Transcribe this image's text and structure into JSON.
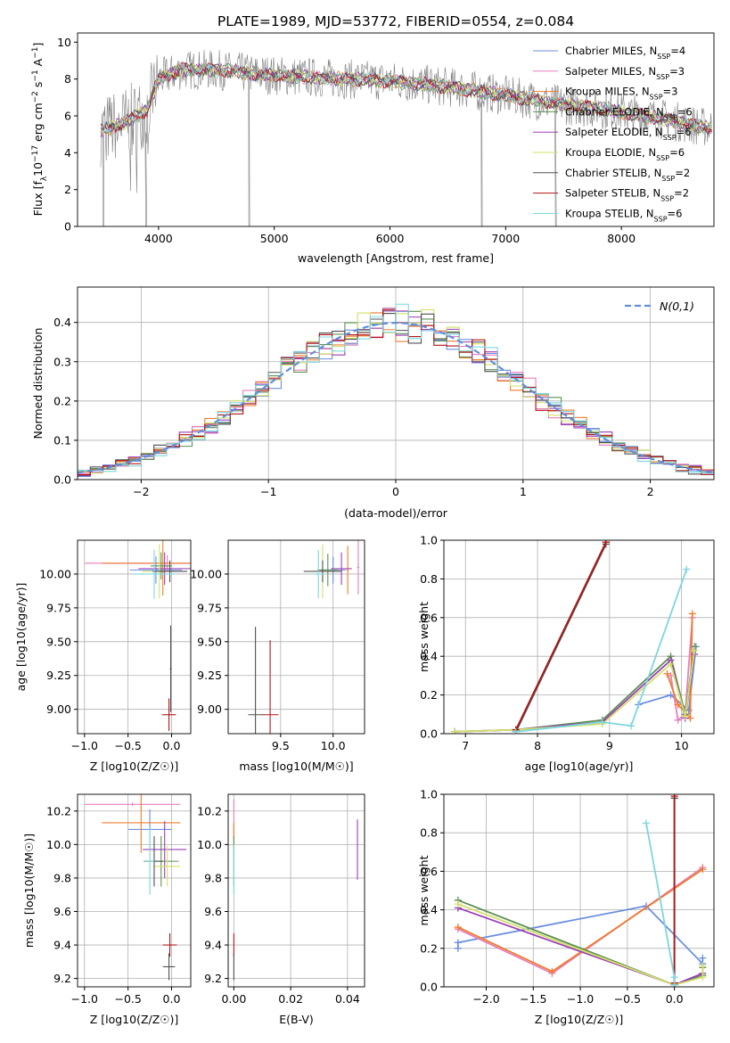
{
  "figure": {
    "title": "PLATE=1989, MJD=53772, FIBERID=0554, z=0.084"
  },
  "colors": {
    "Chabrier MILES": "#6a8fe0",
    "Salpeter MILES": "#e77fbd",
    "Kroupa MILES": "#ee7d2d",
    "Chabrier ELODIE": "#5e8f54",
    "Salpeter ELODIE": "#9a3fb8",
    "Kroupa ELODIE": "#d4e06a",
    "Chabrier STELIB": "#505050",
    "Salpeter STELIB": "#b01515",
    "Kroupa STELIB": "#7dd6dc",
    "gaussian": "#5f8fde"
  },
  "chart_data": [
    {
      "type": "line",
      "xlabel": "wavelength [Angstrom, rest frame]",
      "ylabel": "Flux [f_λ10^-17 erg cm^-2 s^-1 A^-1]",
      "xlim": [
        3300,
        8800
      ],
      "ylim": [
        0,
        10.5
      ],
      "xticks": [
        4000,
        5000,
        6000,
        7000,
        8000
      ],
      "yticks": [
        0,
        2,
        4,
        6,
        8,
        10
      ],
      "legend_position": "top-right",
      "continuum": {
        "x": [
          3500,
          3700,
          3900,
          4000,
          4200,
          4500,
          4800,
          5000,
          5300,
          5600,
          6000,
          6300,
          6600,
          6900,
          7200,
          7500,
          7800,
          8100,
          8400,
          8700
        ],
        "y": [
          5.2,
          5.6,
          6.3,
          8.0,
          8.5,
          8.5,
          8.3,
          8.2,
          8.1,
          8.0,
          7.9,
          7.7,
          7.5,
          7.2,
          6.9,
          6.6,
          6.4,
          6.1,
          5.8,
          5.4
        ]
      },
      "observed_dips": [
        3520,
        3890,
        4780,
        6790,
        7430
      ],
      "series": [
        {
          "name": "Chabrier MILES, N_SSP=4",
          "name_main": "Chabrier MILES, N",
          "name_sub": "SSP",
          "name_tail": "=4"
        },
        {
          "name": "Salpeter MILES, N_SSP=3",
          "name_main": "Salpeter MILES, N",
          "name_sub": "SSP",
          "name_tail": "=3"
        },
        {
          "name": "Kroupa MILES, N_SSP=3",
          "name_main": "Kroupa MILES, N",
          "name_sub": "SSP",
          "name_tail": "=3"
        },
        {
          "name": "Chabrier ELODIE, N_SSP=6",
          "name_main": "Chabrier ELODIE, N",
          "name_sub": "SSP",
          "name_tail": "=6"
        },
        {
          "name": "Salpeter ELODIE, N_SSP=6",
          "name_main": "Salpeter ELODIE, N",
          "name_sub": "SSP",
          "name_tail": "=6"
        },
        {
          "name": "Kroupa ELODIE, N_SSP=6",
          "name_main": "Kroupa ELODIE, N",
          "name_sub": "SSP",
          "name_tail": "=6"
        },
        {
          "name": "Chabrier STELIB, N_SSP=2",
          "name_main": "Chabrier STELIB, N",
          "name_sub": "SSP",
          "name_tail": "=2"
        },
        {
          "name": "Salpeter STELIB, N_SSP=2",
          "name_main": "Salpeter STELIB, N",
          "name_sub": "SSP",
          "name_tail": "=2"
        },
        {
          "name": "Kroupa STELIB, N_SSP=6",
          "name_main": "Kroupa STELIB, N",
          "name_sub": "SSP",
          "name_tail": "=6"
        }
      ]
    },
    {
      "type": "line",
      "xlabel": "(data-model)/error",
      "ylabel": "Normed distribution",
      "xlim": [
        -2.5,
        2.5
      ],
      "ylim": [
        0,
        0.49
      ],
      "xticks": [
        -2,
        -1,
        0,
        1,
        2
      ],
      "yticks": [
        0.0,
        0.1,
        0.2,
        0.3,
        0.4
      ],
      "grid": true,
      "legend_position": "top-right",
      "legend": "N(0,1)",
      "bin_width": 0.1
    },
    {
      "type": "scatter",
      "xlabel": "Z [log10(Z/Z☉)]",
      "ylabel": "age [log10(age/yr)]",
      "xlim": [
        -1.08,
        0.22
      ],
      "ylim": [
        8.82,
        10.25
      ],
      "xticks": [
        -1.0,
        -0.5,
        0.0
      ],
      "yticks": [
        9.0,
        9.25,
        9.5,
        9.75,
        10.0
      ],
      "grid": true,
      "points": [
        {
          "name": "Chabrier MILES",
          "x": -0.18,
          "xerr": 0.3,
          "y": 10.03,
          "yerr": 0.1
        },
        {
          "name": "Salpeter MILES",
          "x": -0.05,
          "xerr": 0.95,
          "y": 10.08,
          "yerr": 0.06
        },
        {
          "name": "Kroupa MILES",
          "x": -0.1,
          "xerr": 0.7,
          "y": 10.08,
          "yerr": 0.24
        },
        {
          "name": "Chabrier ELODIE",
          "x": -0.12,
          "xerr": 0.12,
          "y": 10.06,
          "yerr": 0.1
        },
        {
          "name": "Salpeter ELODIE",
          "x": -0.08,
          "xerr": 0.3,
          "y": 10.04,
          "yerr": 0.12
        },
        {
          "name": "Kroupa ELODIE",
          "x": -0.14,
          "xerr": 0.2,
          "y": 10.02,
          "yerr": 0.2
        },
        {
          "name": "Chabrier STELIB",
          "x": -0.02,
          "xerr": 0.2,
          "y": 10.02,
          "yerr": 0.08
        },
        {
          "name": "Salpeter STELIB",
          "x": -0.03,
          "xerr": 0.08,
          "y": 8.96,
          "yerr": 0.12
        },
        {
          "name": "Kroupa STELIB",
          "x": -0.2,
          "xerr": 0.25,
          "y": 10.0,
          "yerr": 0.18
        },
        {
          "name": "Chabrier STELIB",
          "x": -0.01,
          "xerr": 0.01,
          "y": 9.3,
          "yerr": 0.32
        }
      ]
    },
    {
      "type": "scatter",
      "xlabel": "mass [log10(M/M☉)]",
      "ylabel": "",
      "xlim": [
        9.0,
        10.3
      ],
      "ylim": [
        8.82,
        10.25
      ],
      "xticks": [
        9.5,
        10.0
      ],
      "yticks": [
        9.0,
        9.25,
        9.5,
        9.75,
        10.0
      ],
      "grid": true,
      "points": [
        {
          "name": "Chabrier MILES",
          "x": 10.0,
          "xerr": 0.12,
          "y": 10.03,
          "yerr": 0.1
        },
        {
          "name": "Salpeter MILES",
          "x": 10.24,
          "xerr": 0.01,
          "y": 10.05,
          "yerr": 0.2
        },
        {
          "name": "Kroupa MILES",
          "x": 10.14,
          "xerr": 0.01,
          "y": 10.03,
          "yerr": 0.18
        },
        {
          "name": "Chabrier ELODIE",
          "x": 9.95,
          "xerr": 0.1,
          "y": 10.03,
          "yerr": 0.12
        },
        {
          "name": "Salpeter ELODIE",
          "x": 10.08,
          "xerr": 0.1,
          "y": 10.04,
          "yerr": 0.12
        },
        {
          "name": "Kroupa ELODIE",
          "x": 9.9,
          "xerr": 0.1,
          "y": 10.02,
          "yerr": 0.2
        },
        {
          "name": "Chabrier STELIB",
          "x": 9.9,
          "xerr": 0.18,
          "y": 10.02,
          "yerr": 0.08
        },
        {
          "name": "Salpeter STELIB",
          "x": 9.4,
          "xerr": 0.08,
          "y": 8.96,
          "yerr": 0.55
        },
        {
          "name": "Chabrier STELIB",
          "x": 9.26,
          "xerr": 0.07,
          "y": 8.96,
          "yerr": 0.65
        },
        {
          "name": "Kroupa STELIB",
          "x": 9.86,
          "xerr": 0.05,
          "y": 10.0,
          "yerr": 0.18
        }
      ]
    },
    {
      "type": "line",
      "xlabel": "age [log10(age/yr)]",
      "ylabel": "mass weight",
      "xlim": [
        6.7,
        10.45
      ],
      "ylim": [
        0,
        1.0
      ],
      "xticks": [
        7,
        8,
        9,
        10
      ],
      "yticks": [
        0.0,
        0.2,
        0.4,
        0.6,
        0.8,
        1.0
      ],
      "grid": true,
      "series": [
        {
          "name": "Chabrier MILES",
          "x": [
            9.4,
            9.85,
            10.1,
            10.2
          ],
          "y": [
            0.15,
            0.2,
            0.12,
            0.45
          ]
        },
        {
          "name": "Salpeter MILES",
          "x": [
            9.85,
            9.95,
            10.05,
            10.15
          ],
          "y": [
            0.3,
            0.07,
            0.1,
            0.6
          ]
        },
        {
          "name": "Kroupa MILES",
          "x": [
            9.8,
            9.95,
            10.12,
            10.15
          ],
          "y": [
            0.31,
            0.15,
            0.08,
            0.62
          ]
        },
        {
          "name": "Chabrier ELODIE",
          "x": [
            6.85,
            7.7,
            8.9,
            9.85,
            10.05,
            10.18
          ],
          "y": [
            0.01,
            0.02,
            0.07,
            0.4,
            0.1,
            0.45
          ]
        },
        {
          "name": "Salpeter ELODIE",
          "x": [
            6.85,
            7.7,
            8.9,
            9.85,
            10.05,
            10.18
          ],
          "y": [
            0.01,
            0.02,
            0.06,
            0.38,
            0.08,
            0.41
          ]
        },
        {
          "name": "Kroupa ELODIE",
          "x": [
            6.85,
            7.7,
            8.9,
            9.85,
            10.05,
            10.18
          ],
          "y": [
            0.01,
            0.02,
            0.05,
            0.36,
            0.09,
            0.43
          ]
        },
        {
          "name": "Chabrier STELIB",
          "x": [
            7.7,
            8.95
          ],
          "y": [
            0.01,
            0.98
          ]
        },
        {
          "name": "Salpeter STELIB",
          "x": [
            7.7,
            8.95
          ],
          "y": [
            0.02,
            0.99
          ]
        },
        {
          "name": "Kroupa STELIB",
          "x": [
            7.7,
            8.9,
            9.3,
            10.07
          ],
          "y": [
            0.01,
            0.06,
            0.04,
            0.85
          ]
        }
      ]
    },
    {
      "type": "scatter",
      "xlabel": "Z [log10(Z/Z☉)]",
      "ylabel": "mass [log10(M/M☉)]",
      "xlim": [
        -1.08,
        0.22
      ],
      "ylim": [
        9.15,
        10.3
      ],
      "xticks": [
        -1.0,
        -0.5,
        0.0
      ],
      "yticks": [
        9.2,
        9.4,
        9.6,
        9.8,
        10.0,
        10.2
      ],
      "grid": true,
      "points": [
        {
          "name": "Chabrier MILES",
          "x": -0.25,
          "xerr": 0.25,
          "y": 10.09,
          "yerr": 0.12
        },
        {
          "name": "Salpeter MILES",
          "x": -0.45,
          "xerr": 0.55,
          "y": 10.24,
          "yerr": 0.01
        },
        {
          "name": "Kroupa MILES",
          "x": -0.35,
          "xerr": 0.45,
          "y": 10.13,
          "yerr": 0.18
        },
        {
          "name": "Chabrier ELODIE",
          "x": -0.12,
          "xerr": 0.2,
          "y": 9.9,
          "yerr": 0.15
        },
        {
          "name": "Salpeter ELODIE",
          "x": -0.08,
          "xerr": 0.25,
          "y": 9.97,
          "yerr": 0.17
        },
        {
          "name": "Kroupa ELODIE",
          "x": -0.05,
          "xerr": 0.15,
          "y": 9.87,
          "yerr": 0.12
        },
        {
          "name": "Chabrier STELIB",
          "x": -0.2,
          "xerr": 0.1,
          "y": 9.9,
          "yerr": 0.15
        },
        {
          "name": "Salpeter STELIB",
          "x": -0.02,
          "xerr": 0.08,
          "y": 9.4,
          "yerr": 0.07
        },
        {
          "name": "Chabrier STELIB",
          "x": -0.03,
          "xerr": 0.07,
          "y": 9.27,
          "yerr": 0.08
        },
        {
          "name": "Kroupa STELIB",
          "x": -0.25,
          "xerr": 0.05,
          "y": 9.9,
          "yerr": 0.2
        }
      ]
    },
    {
      "type": "scatter",
      "xlabel": "E(B-V)",
      "ylabel": "",
      "xlim": [
        -0.002,
        0.046
      ],
      "ylim": [
        9.15,
        10.3
      ],
      "xticks": [
        0.0,
        0.02,
        0.04
      ],
      "yticks": [
        9.2,
        9.4,
        9.6,
        9.8,
        10.0,
        10.2
      ],
      "grid": true,
      "points": [
        {
          "name": "Salpeter MILES",
          "x": 0.0,
          "xerr": 0.0,
          "y": 10.15,
          "yerr": 0.12
        },
        {
          "name": "Kroupa MILES",
          "x": 0.0,
          "xerr": 0.0,
          "y": 10.05,
          "yerr": 0.08
        },
        {
          "name": "Chabrier ELODIE",
          "x": 0.0,
          "xerr": 0.0,
          "y": 9.9,
          "yerr": 0.15
        },
        {
          "name": "Kroupa STELIB",
          "x": 0.0,
          "xerr": 0.0,
          "y": 9.85,
          "yerr": 0.15
        },
        {
          "name": "Salpeter STELIB",
          "x": 0.0,
          "xerr": 0.0,
          "y": 9.4,
          "yerr": 0.07
        },
        {
          "name": "Chabrier STELIB",
          "x": 0.0,
          "xerr": 0.0,
          "y": 9.27,
          "yerr": 0.08
        },
        {
          "name": "Salpeter ELODIE",
          "x": 0.0435,
          "xerr": 0.0,
          "y": 9.97,
          "yerr": 0.18
        }
      ]
    },
    {
      "type": "line",
      "xlabel": "Z [log10(Z/Z☉)]",
      "ylabel": "mass weight",
      "xlim": [
        -2.45,
        0.42
      ],
      "ylim": [
        0,
        1.0
      ],
      "xticks": [
        -2.0,
        -1.5,
        -1.0,
        -0.5,
        0.0
      ],
      "yticks": [
        0.0,
        0.2,
        0.4,
        0.6,
        0.8,
        1.0
      ],
      "grid": true,
      "series": [
        {
          "name": "Chabrier MILES",
          "x": [
            -2.3,
            -2.3,
            -0.3,
            0.3,
            0.3
          ],
          "y": [
            0.2,
            0.23,
            0.42,
            0.12,
            0.15
          ]
        },
        {
          "name": "Salpeter MILES",
          "x": [
            -2.3,
            -1.3,
            0.3
          ],
          "y": [
            0.3,
            0.07,
            0.62
          ]
        },
        {
          "name": "Kroupa MILES",
          "x": [
            -2.3,
            -1.3,
            0.3
          ],
          "y": [
            0.31,
            0.08,
            0.61
          ]
        },
        {
          "name": "Chabrier ELODIE",
          "x": [
            -2.3,
            0.0,
            0.3,
            0.3
          ],
          "y": [
            0.45,
            0.01,
            0.06,
            0.1
          ]
        },
        {
          "name": "Salpeter ELODIE",
          "x": [
            -2.3,
            0.0,
            0.3
          ],
          "y": [
            0.41,
            0.01,
            0.07
          ]
        },
        {
          "name": "Kroupa ELODIE",
          "x": [
            -2.3,
            0.0,
            0.3,
            0.3
          ],
          "y": [
            0.43,
            0.01,
            0.05,
            0.11
          ]
        },
        {
          "name": "Chabrier STELIB",
          "x": [
            0.0,
            0.0
          ],
          "y": [
            0.01,
            0.98
          ]
        },
        {
          "name": "Salpeter STELIB",
          "x": [
            0.0,
            0.0
          ],
          "y": [
            0.02,
            0.99
          ]
        },
        {
          "name": "Kroupa STELIB",
          "x": [
            -0.3,
            0.0,
            0.0
          ],
          "y": [
            0.85,
            0.05,
            0.01
          ]
        }
      ]
    }
  ]
}
